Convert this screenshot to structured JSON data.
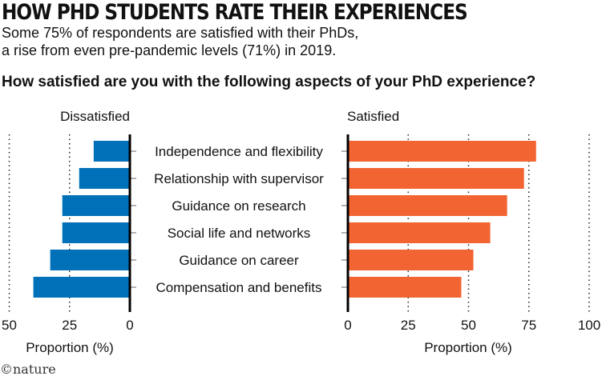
{
  "title": "HOW PHD STUDENTS RATE THEIR EXPERIENCES",
  "subtitle": [
    "Some 75% of respondents are satisfied with their PhDs,",
    "a rise from even pre-pandemic levels (71%) in 2019."
  ],
  "question": "How satisfied are you with the following aspects of your PhD experience?",
  "logo": "©nature",
  "chart_data": [
    {
      "type": "bar",
      "orientation": "horizontal",
      "title": "Dissatisfied",
      "xlabel": "Proportion (%)",
      "xlim": [
        50,
        0
      ],
      "ticks": [
        "50",
        "25",
        "0"
      ],
      "tick_values": [
        50,
        25,
        0
      ],
      "grid": true,
      "color": "#0070B8",
      "categories": [
        "Independence and flexibility",
        "Relationship with supervisor",
        "Guidance on research",
        "Social life and networks",
        "Guidance on career",
        "Compensation and benefits"
      ],
      "values": [
        15,
        21,
        28,
        28,
        33,
        40
      ]
    },
    {
      "type": "bar",
      "orientation": "horizontal",
      "title": "Satisfied",
      "xlabel": "Proportion (%)",
      "xlim": [
        0,
        100
      ],
      "ticks": [
        "0",
        "25",
        "50",
        "75",
        "100"
      ],
      "tick_values": [
        0,
        25,
        50,
        75,
        100
      ],
      "grid": true,
      "color": "#F26532",
      "categories": [
        "Independence and flexibility",
        "Relationship with supervisor",
        "Guidance on research",
        "Social life and networks",
        "Guidance on career",
        "Compensation and benefits"
      ],
      "values": [
        78,
        73,
        66,
        59,
        52,
        47
      ]
    }
  ]
}
